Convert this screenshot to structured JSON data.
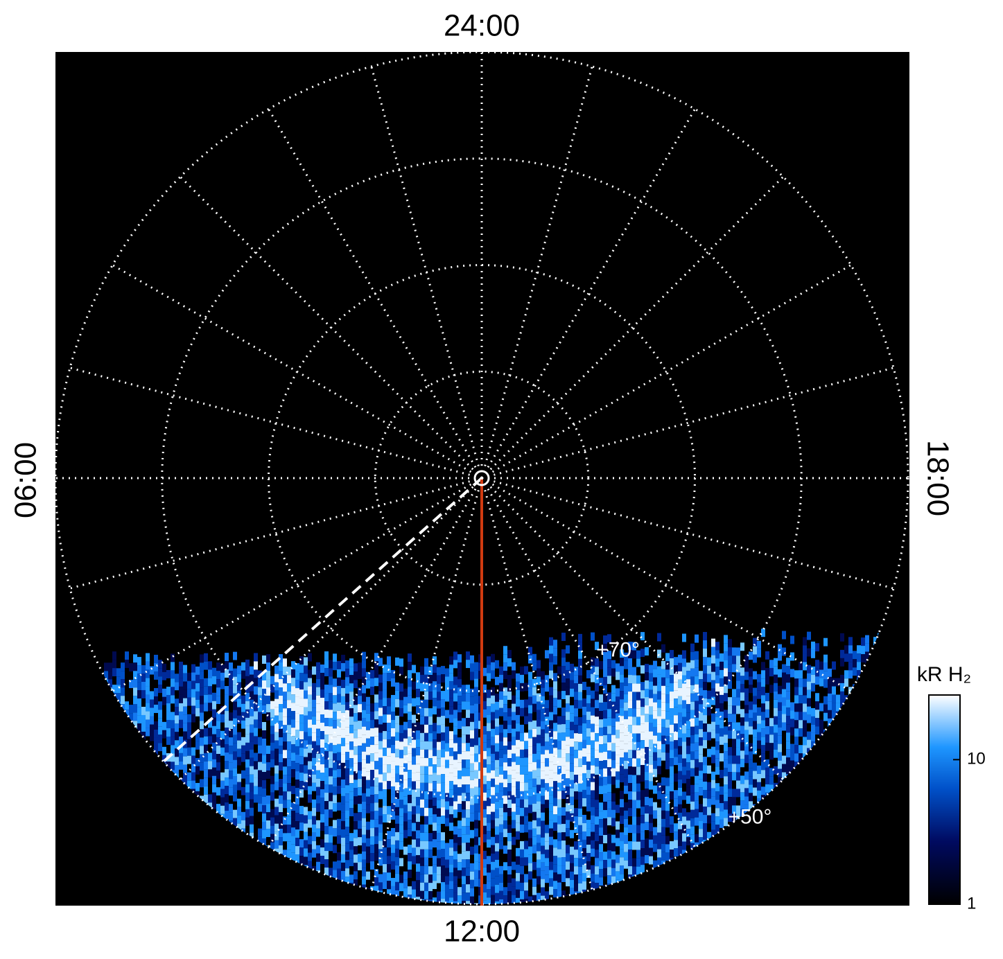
{
  "chart_data": {
    "type": "polar_image",
    "local_time_labels": {
      "top": "24:00",
      "bottom": "12:00",
      "left": "06:00",
      "right": "18:00"
    },
    "rlim": [
      90,
      50
    ],
    "latitude_circles": [
      50,
      60,
      70,
      80
    ],
    "latitude_labels": [
      {
        "value": 70,
        "label": "+70°"
      },
      {
        "value": 50,
        "label": "+50°"
      }
    ],
    "lt_gridlines": [
      0,
      1,
      2,
      3,
      4,
      5,
      6,
      7,
      8,
      9,
      10,
      11,
      12,
      13,
      14,
      15,
      16,
      17,
      18,
      19,
      20,
      21,
      22,
      23
    ],
    "grid": true,
    "colorbar": {
      "title": "kR H₂",
      "scale": "log",
      "lim": [
        1,
        28
      ],
      "ticks": [
        1,
        10
      ]
    }
  }
}
